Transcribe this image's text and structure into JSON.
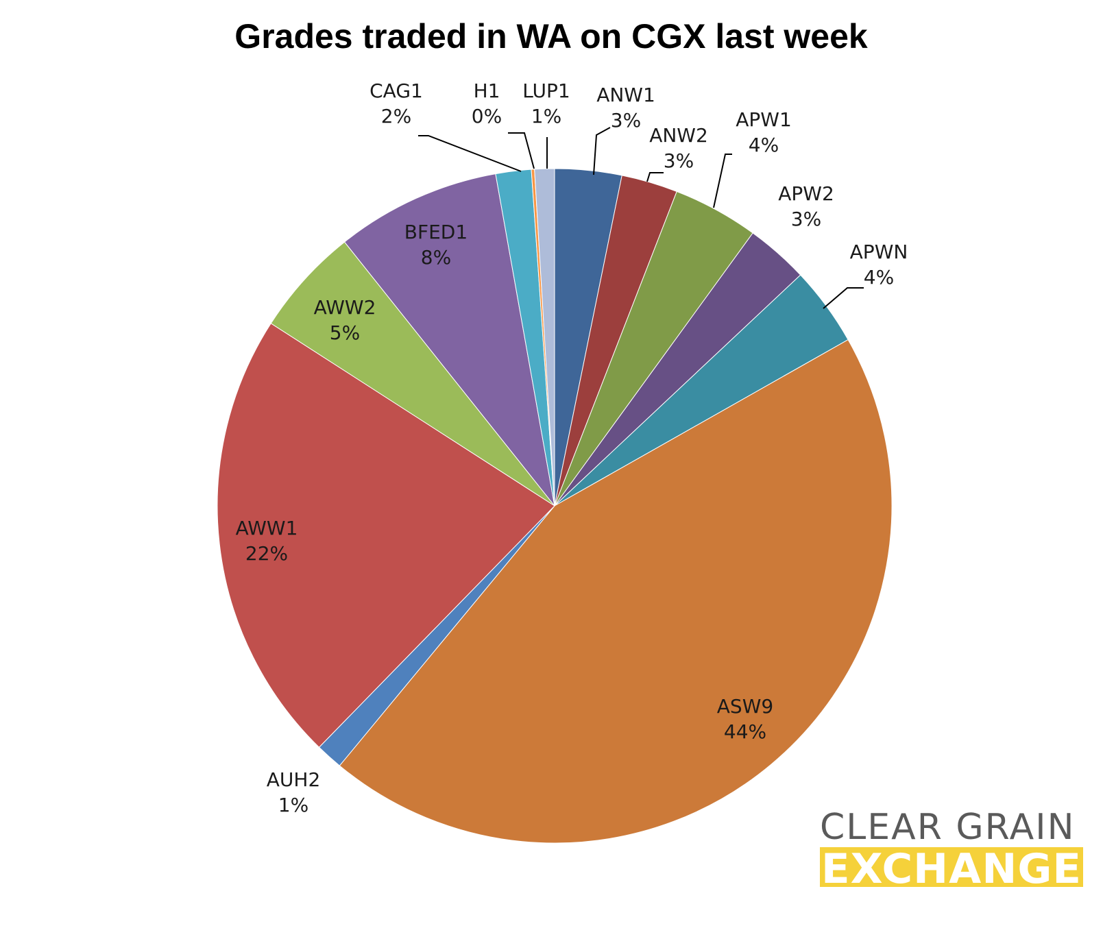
{
  "chart_data": {
    "type": "pie",
    "title": "Grades traded in WA on CGX last week",
    "start_angle_deg": 0,
    "direction": "clockwise",
    "slices": [
      {
        "name": "ANW1",
        "value": 3.2,
        "label": "3%",
        "color": "#3f6698"
      },
      {
        "name": "ANW2",
        "value": 2.7,
        "label": "3%",
        "color": "#9c3f3d"
      },
      {
        "name": "APW1",
        "value": 4.1,
        "label": "4%",
        "color": "#809b48"
      },
      {
        "name": "APW2",
        "value": 3.0,
        "label": "3%",
        "color": "#675085"
      },
      {
        "name": "APWN",
        "value": 3.8,
        "label": "4%",
        "color": "#3a8da2"
      },
      {
        "name": "ASW9",
        "value": 44.2,
        "label": "44%",
        "color": "#cc7a39"
      },
      {
        "name": "AUH2",
        "value": 1.3,
        "label": "1%",
        "color": "#4f81bd"
      },
      {
        "name": "AWW1",
        "value": 21.8,
        "label": "22%",
        "color": "#c0504d"
      },
      {
        "name": "AWW2",
        "value": 5.2,
        "label": "5%",
        "color": "#9bbb59"
      },
      {
        "name": "BFED1",
        "value": 7.9,
        "label": "8%",
        "color": "#8064a2"
      },
      {
        "name": "CAG1",
        "value": 1.7,
        "label": "2%",
        "color": "#4bacc6"
      },
      {
        "name": "H1",
        "value": 0.15,
        "label": "0%",
        "color": "#f79646"
      },
      {
        "name": "LUP1",
        "value": 0.95,
        "label": "1%",
        "color": "#aebcd9"
      }
    ]
  },
  "logo": {
    "line1": "CLEAR GRAIN",
    "line2": "EXCHANGE",
    "accent_color": "#f5d13a",
    "text_color": "#5a5a5a"
  }
}
